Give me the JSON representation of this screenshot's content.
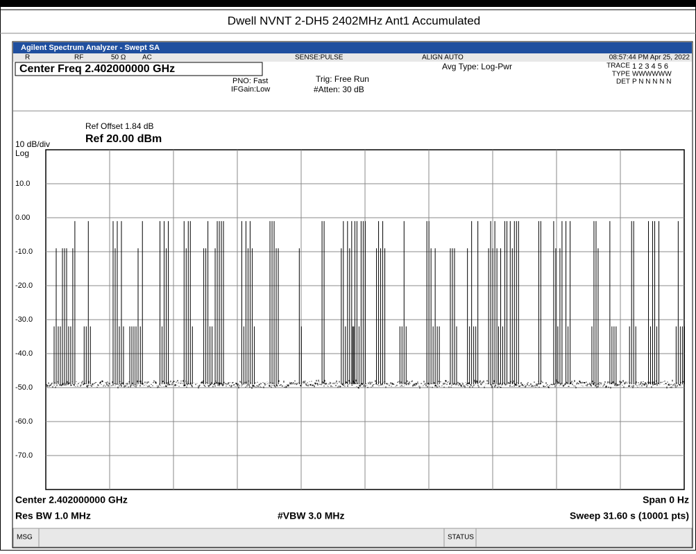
{
  "page_title": "Dwell NVNT 2-DH5 2402MHz Ant1 Accumulated",
  "window_title": "Agilent Spectrum Analyzer - Swept SA",
  "status_row": {
    "mode": "R",
    "rf": "RF",
    "impedance": "50 Ω",
    "coupling": "AC",
    "sense": "SENSE:PULSE",
    "align": "ALIGN AUTO",
    "time": "08:57:44 PM Apr 25, 2022"
  },
  "center_freq_box": "Center Freq 2.402000000 GHz",
  "pno": "PNO: Fast",
  "ifgain": "IFGain:Low",
  "trig": "Trig: Free Run",
  "atten": "#Atten: 30 dB",
  "avg_type": "Avg Type: Log-Pwr",
  "trace_panel": {
    "trace_label": "TRACE",
    "trace_nums": "1 2 3 4 5 6",
    "type_label": "TYPE",
    "type_val": "WWWWWW",
    "det_label": "DET",
    "det_val": "P N N N N N"
  },
  "ref_offset": "Ref Offset 1.84 dB",
  "scale": "10 dB/div",
  "ref_level": "Ref 20.00 dBm",
  "log": "Log",
  "plot": {
    "ylim": [
      -80,
      20
    ],
    "yticks": [
      {
        "value": 10,
        "label": "10.0"
      },
      {
        "value": 0,
        "label": "0.00"
      },
      {
        "value": -10,
        "label": "-10.0"
      },
      {
        "value": -20,
        "label": "-20.0"
      },
      {
        "value": -30,
        "label": "-30.0"
      },
      {
        "value": -40,
        "label": "-40.0"
      },
      {
        "value": -50,
        "label": "-50.0"
      },
      {
        "value": -60,
        "label": "-60.0"
      },
      {
        "value": -70,
        "label": "-70.0"
      }
    ]
  },
  "footer": {
    "center": "Center 2.402000000 GHz",
    "span": "Span 0 Hz",
    "rbw": "Res BW 1.0 MHz",
    "vbw": "#VBW 3.0 MHz",
    "sweep": "Sweep  31.60 s (10001 pts)"
  },
  "msg": "MSG",
  "status": "STATUS"
}
